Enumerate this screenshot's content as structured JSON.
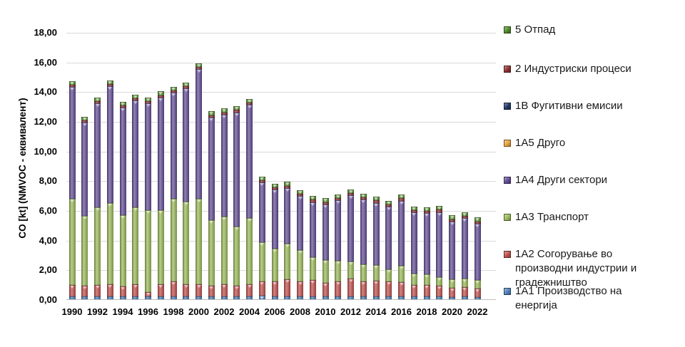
{
  "chart_data": {
    "type": "bar",
    "stacked": true,
    "title": "",
    "xlabel": "",
    "ylabel": "CO [kt] (NMVOC - еквивалент)",
    "ylim": [
      0,
      18
    ],
    "ytick_step": 2,
    "grid": true,
    "background": "#FFFFFF",
    "gridline_color": "#D9D9D9",
    "axis_line_color": "#BFBFBF",
    "text_color": "#000000",
    "legend_position": "right",
    "y_tick_labels": [
      "0,00",
      "2,00",
      "4,00",
      "6,00",
      "8,00",
      "10,00",
      "12,00",
      "14,00",
      "16,00",
      "18,00"
    ],
    "x": [
      1990,
      1991,
      1992,
      1993,
      1994,
      1995,
      1996,
      1997,
      1998,
      1999,
      2000,
      2001,
      2002,
      2003,
      2004,
      2005,
      2006,
      2007,
      2008,
      2009,
      2010,
      2011,
      2012,
      2013,
      2014,
      2015,
      2016,
      2017,
      2018,
      2019,
      2020,
      2021,
      2022
    ],
    "x_tick_labels": [
      "1990",
      "1992",
      "1994",
      "1996",
      "1998",
      "2000",
      "2002",
      "2004",
      "2006",
      "2008",
      "2010",
      "2012",
      "2014",
      "2016",
      "2018",
      "2020",
      "2022"
    ],
    "series": [
      {
        "name": "1A1 Производство на енергија",
        "color": "#4F81BD",
        "values": [
          0.2,
          0.2,
          0.2,
          0.2,
          0.2,
          0.2,
          0.2,
          0.2,
          0.2,
          0.2,
          0.2,
          0.2,
          0.2,
          0.2,
          0.2,
          0.25,
          0.2,
          0.2,
          0.2,
          0.2,
          0.2,
          0.2,
          0.2,
          0.2,
          0.2,
          0.2,
          0.2,
          0.2,
          0.2,
          0.2,
          0.15,
          0.2,
          0.15
        ]
      },
      {
        "name": "1A2 Согорување во производни индустрии и градежништво",
        "color": "#C0504D",
        "values": [
          0.75,
          0.7,
          0.75,
          0.8,
          0.65,
          0.8,
          0.3,
          0.8,
          1.0,
          0.8,
          0.8,
          0.7,
          0.8,
          0.7,
          0.8,
          0.95,
          1.0,
          1.15,
          1.0,
          1.1,
          0.9,
          1.0,
          1.2,
          1.0,
          1.05,
          1.0,
          0.95,
          0.75,
          0.75,
          0.7,
          0.6,
          0.6,
          0.55
        ]
      },
      {
        "name": "1A3 Транспорт",
        "color": "#9BBB59",
        "values": [
          5.8,
          4.7,
          5.25,
          5.5,
          4.8,
          5.2,
          5.5,
          5.0,
          5.55,
          5.6,
          5.75,
          4.45,
          4.55,
          4.0,
          4.45,
          2.65,
          2.2,
          2.4,
          2.1,
          1.55,
          1.55,
          1.4,
          1.15,
          1.15,
          1.05,
          0.8,
          1.1,
          0.8,
          0.75,
          0.6,
          0.6,
          0.6,
          0.6
        ]
      },
      {
        "name": "1A4 Други сектори",
        "color": "#624C95",
        "values": [
          7.55,
          6.3,
          7.0,
          7.85,
          7.25,
          7.2,
          7.2,
          7.6,
          7.15,
          7.6,
          8.75,
          6.9,
          6.9,
          7.7,
          7.65,
          4.0,
          4.0,
          3.75,
          3.65,
          3.7,
          3.75,
          4.05,
          4.45,
          4.35,
          4.2,
          4.25,
          4.4,
          4.1,
          4.1,
          4.35,
          3.9,
          4.05,
          3.8
        ]
      },
      {
        "name": "1A5 Друго",
        "color": "#E8A33D",
        "values": [
          0,
          0,
          0,
          0,
          0,
          0,
          0,
          0,
          0,
          0,
          0,
          0,
          0,
          0,
          0,
          0,
          0,
          0,
          0,
          0,
          0,
          0,
          0,
          0,
          0,
          0,
          0,
          0,
          0,
          0,
          0,
          0,
          0
        ]
      },
      {
        "name": "1B Фугитивни емисии",
        "color": "#1F3864",
        "values": [
          0,
          0,
          0,
          0,
          0,
          0,
          0,
          0,
          0,
          0,
          0,
          0,
          0,
          0,
          0,
          0,
          0,
          0,
          0,
          0,
          0,
          0,
          0,
          0,
          0,
          0,
          0,
          0,
          0,
          0,
          0,
          0,
          0
        ]
      },
      {
        "name": "2 Индустриски процеси",
        "color": "#8E3031",
        "values": [
          0.15,
          0.15,
          0.15,
          0.15,
          0.15,
          0.15,
          0.15,
          0.15,
          0.15,
          0.15,
          0.15,
          0.15,
          0.15,
          0.15,
          0.15,
          0.15,
          0.15,
          0.15,
          0.15,
          0.15,
          0.15,
          0.15,
          0.15,
          0.15,
          0.15,
          0.15,
          0.15,
          0.15,
          0.15,
          0.2,
          0.15,
          0.15,
          0.15
        ]
      },
      {
        "name": "5 Отпад",
        "color": "#4F8B28",
        "values": [
          0.25,
          0.25,
          0.25,
          0.25,
          0.25,
          0.25,
          0.25,
          0.25,
          0.25,
          0.25,
          0.25,
          0.25,
          0.25,
          0.25,
          0.25,
          0.25,
          0.25,
          0.25,
          0.25,
          0.25,
          0.25,
          0.25,
          0.25,
          0.25,
          0.25,
          0.25,
          0.25,
          0.25,
          0.25,
          0.25,
          0.25,
          0.25,
          0.25
        ]
      }
    ],
    "legend_order": [
      7,
      6,
      5,
      4,
      3,
      2,
      1,
      0
    ]
  }
}
